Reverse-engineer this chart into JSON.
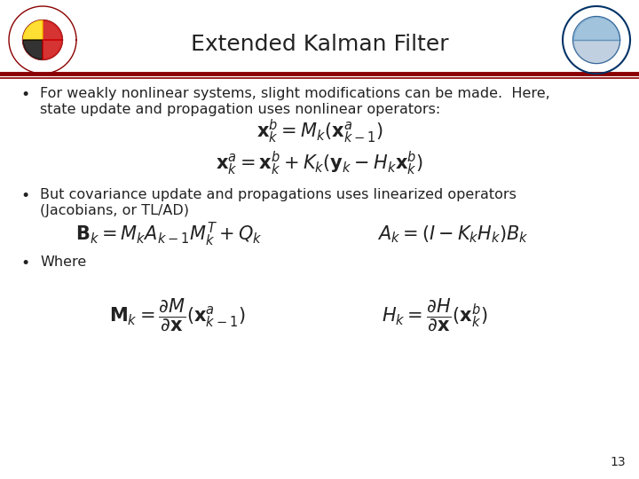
{
  "title": "Extended Kalman Filter",
  "title_fontsize": 18,
  "title_color": "#222222",
  "bg_color": "#ffffff",
  "header_line_color": "#8B0000",
  "bullet1_line1": "For weakly nonlinear systems, slight modifications can be made.  Here,",
  "bullet1_line2": "state update and propagation uses nonlinear operators:",
  "eq1": "$\\mathbf{x}^b_k = M_k(\\mathbf{x}^a_{k-1})$",
  "eq2": "$\\mathbf{x}^a_k = \\mathbf{x}^b_k + K_k(\\mathbf{y}_k - H_k\\mathbf{x}^b_k)$",
  "bullet2_line1": "But covariance update and propagations uses linearized operators",
  "bullet2_line2": "(Jacobians, or TL/AD)",
  "eq3": "$\\mathbf{B}_k = M_k A_{k-1} M^T_k + Q_k$",
  "eq4": "$A_k = (I - K_k H_k) B_k$",
  "bullet3": "Where",
  "eq5": "$\\mathbf{M}_k = \\dfrac{\\partial M}{\\partial \\mathbf{x}}(\\mathbf{x}^a_{k-1})$",
  "eq6": "$H_k = \\dfrac{\\partial H}{\\partial \\mathbf{x}}(\\mathbf{x}^b_k)$",
  "page_number": "13",
  "text_color": "#222222",
  "bullet_fontsize": 11.5,
  "eq_fontsize": 14,
  "eq_large_fontsize": 15
}
